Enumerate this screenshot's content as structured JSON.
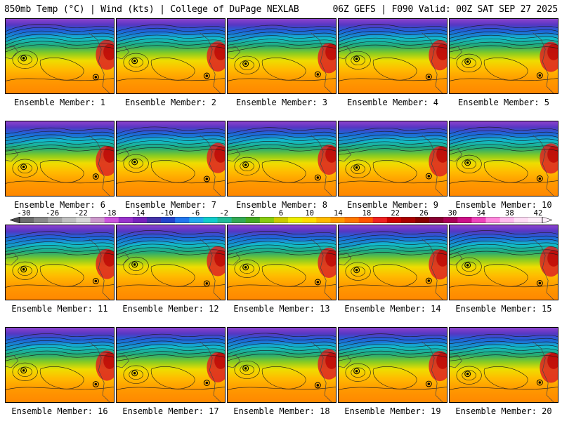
{
  "header": {
    "left": "850mb Temp (°C) | Wind (kts) | College of DuPage NEXLAB",
    "right": "06Z GEFS | F090 Valid: 00Z SAT SEP 27 2025"
  },
  "colorbar": {
    "ticks": [
      "-30",
      "-26",
      "-22",
      "-18",
      "-14",
      "-10",
      "-6",
      "-2",
      "2",
      "6",
      "10",
      "14",
      "18",
      "22",
      "26",
      "30",
      "34",
      "38",
      "42"
    ],
    "colors": [
      "#6e6e6e",
      "#8a8a8a",
      "#a5a5a5",
      "#c0c0c0",
      "#d7d7d7",
      "#cc99cc",
      "#cc55dd",
      "#9933cc",
      "#7722bb",
      "#4433aa",
      "#2244cc",
      "#2277ee",
      "#22aaee",
      "#11cccc",
      "#22bb99",
      "#33aa55",
      "#44aa22",
      "#88cc11",
      "#cccc00",
      "#eeee00",
      "#ffdd00",
      "#ffbb00",
      "#ff9900",
      "#ff7700",
      "#ff5500",
      "#ee2222",
      "#cc0000",
      "#aa0000",
      "#880000",
      "#880033",
      "#aa0055",
      "#cc1188",
      "#ee44bb",
      "#ff88dd",
      "#ffbbee",
      "#ffddf5",
      "#ffeefa"
    ]
  },
  "members": [
    {
      "label": "Ensemble Member: 1"
    },
    {
      "label": "Ensemble Member: 2"
    },
    {
      "label": "Ensemble Member: 3"
    },
    {
      "label": "Ensemble Member: 4"
    },
    {
      "label": "Ensemble Member: 5"
    },
    {
      "label": "Ensemble Member: 6"
    },
    {
      "label": "Ensemble Member: 7"
    },
    {
      "label": "Ensemble Member: 8"
    },
    {
      "label": "Ensemble Member: 9"
    },
    {
      "label": "Ensemble Member: 10"
    },
    {
      "label": "Ensemble Member: 11"
    },
    {
      "label": "Ensemble Member: 12"
    },
    {
      "label": "Ensemble Member: 13"
    },
    {
      "label": "Ensemble Member: 14"
    },
    {
      "label": "Ensemble Member: 15"
    },
    {
      "label": "Ensemble Member: 16"
    },
    {
      "label": "Ensemble Member: 17"
    },
    {
      "label": "Ensemble Member: 18"
    },
    {
      "label": "Ensemble Member: 19"
    },
    {
      "label": "Ensemble Member: 20"
    }
  ]
}
